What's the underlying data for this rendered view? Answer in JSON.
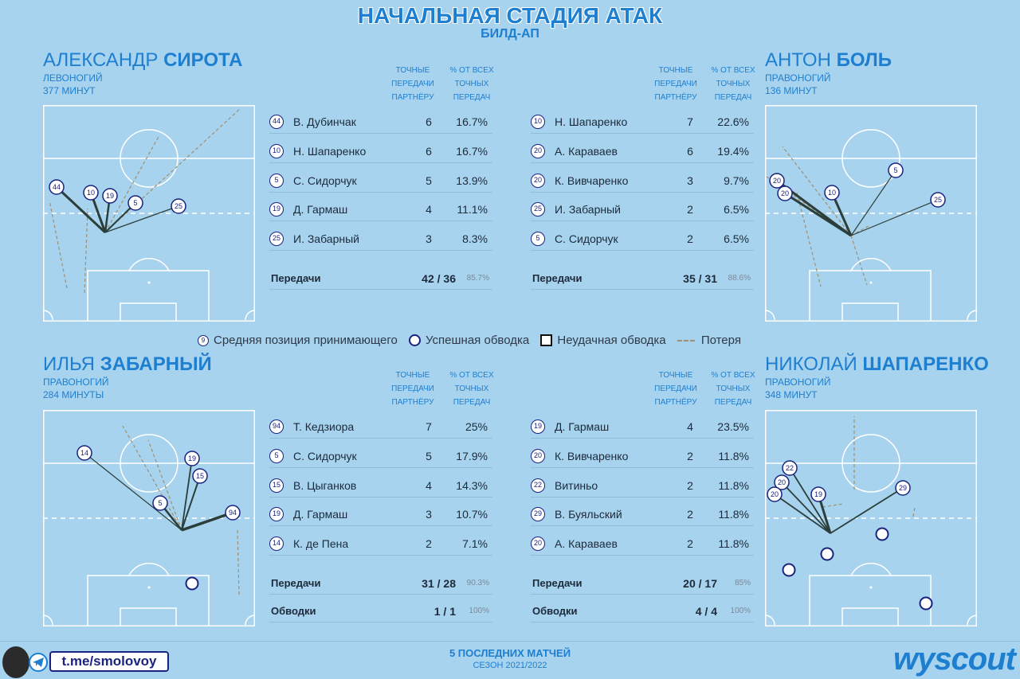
{
  "title": "НАЧАЛЬНАЯ СТАДИЯ АТАК",
  "subtitle": "БИЛД-АП",
  "columns": {
    "passes": [
      "ТОЧНЫЕ",
      "ПЕРЕДАЧИ",
      "ПАРТНЁРУ"
    ],
    "pct": [
      "% ОТ ВСЕХ",
      "ТОЧНЫХ",
      "ПЕРЕДАЧ"
    ]
  },
  "colors": {
    "accent": "#1e7fd0",
    "badge_border": "#1a237e",
    "pass_line": "#2c3e3a",
    "loss_line": "#a08f70"
  },
  "legend": {
    "badge_num": "9",
    "avg_pos": "Средняя позиция принимающего",
    "success_dribble": "Успешная обводка",
    "fail_dribble": "Неудачная обводка",
    "loss": "Потеря"
  },
  "players": [
    {
      "first": "АЛЕКСАНДР",
      "last": "СИРОТА",
      "foot": "ЛЕВОНОГИЙ",
      "minutes": "377 МИНУТ",
      "summary": {
        "label": "Передачи",
        "value": "42 / 36",
        "pct": "85.7%"
      }
    },
    {
      "first": "АНТОН",
      "last": "БОЛЬ",
      "foot": "ПРАВОНОГИЙ",
      "minutes": "136 МИНУТ",
      "summary": {
        "label": "Передачи",
        "value": "35 / 31",
        "pct": "88.6%"
      }
    },
    {
      "first": "ИЛЬЯ",
      "last": "ЗАБАРНЫЙ",
      "foot": "ПРАВОНОГИЙ",
      "minutes": "284 МИНУТЫ",
      "summary": {
        "label": "Передачи",
        "value": "31 / 28",
        "pct": "90.3%"
      },
      "dribbles": {
        "label": "Обводки",
        "value": "1 / 1",
        "pct": "100%"
      }
    },
    {
      "first": "НИКОЛАЙ",
      "last": "ШАПАРЕНКО",
      "foot": "ПРАВОНОГИЙ",
      "minutes": "348 МИНУТ",
      "summary": {
        "label": "Передачи",
        "value": "20 / 17",
        "pct": "85%"
      },
      "dribbles": {
        "label": "Обводки",
        "value": "4 / 4",
        "pct": "100%"
      }
    }
  ],
  "chart_data": [
    {
      "type": "table",
      "player": "Александр Сирота",
      "rows": [
        {
          "num": "44",
          "name": "В. Дубинчак",
          "passes": 6,
          "pct": "16.7%"
        },
        {
          "num": "10",
          "name": "Н. Шапаренко",
          "passes": 6,
          "pct": "16.7%"
        },
        {
          "num": "5",
          "name": "С. Сидорчук",
          "passes": 5,
          "pct": "13.9%"
        },
        {
          "num": "19",
          "name": "Д. Гармаш",
          "passes": 4,
          "pct": "11.1%"
        },
        {
          "num": "25",
          "name": "И. Забарный",
          "passes": 3,
          "pct": "8.3%"
        }
      ]
    },
    {
      "type": "table",
      "player": "Антон Боль",
      "rows": [
        {
          "num": "10",
          "name": "Н. Шапаренко",
          "passes": 7,
          "pct": "22.6%"
        },
        {
          "num": "20",
          "name": "А. Караваев",
          "passes": 6,
          "pct": "19.4%"
        },
        {
          "num": "20",
          "name": "К. Вивчаренко",
          "passes": 3,
          "pct": "9.7%"
        },
        {
          "num": "25",
          "name": "И. Забарный",
          "passes": 2,
          "pct": "6.5%"
        },
        {
          "num": "5",
          "name": "С. Сидорчук",
          "passes": 2,
          "pct": "6.5%"
        }
      ]
    },
    {
      "type": "table",
      "player": "Илья Забарный",
      "rows": [
        {
          "num": "94",
          "name": "Т. Кедзиора",
          "passes": 7,
          "pct": "25%"
        },
        {
          "num": "5",
          "name": "С. Сидорчук",
          "passes": 5,
          "pct": "17.9%"
        },
        {
          "num": "15",
          "name": "В. Цыганков",
          "passes": 4,
          "pct": "14.3%"
        },
        {
          "num": "19",
          "name": "Д. Гармаш",
          "passes": 3,
          "pct": "10.7%"
        },
        {
          "num": "14",
          "name": "К. де Пена",
          "passes": 2,
          "pct": "7.1%"
        }
      ]
    },
    {
      "type": "table",
      "player": "Николай Шапаренко",
      "rows": [
        {
          "num": "19",
          "name": "Д. Гармаш",
          "passes": 4,
          "pct": "23.5%"
        },
        {
          "num": "20",
          "name": "К. Вивчаренко",
          "passes": 2,
          "pct": "11.8%"
        },
        {
          "num": "22",
          "name": "Витиньо",
          "passes": 2,
          "pct": "11.8%"
        },
        {
          "num": "29",
          "name": "В. Буяльский",
          "passes": 2,
          "pct": "11.8%"
        },
        {
          "num": "20",
          "name": "А. Караваев",
          "passes": 2,
          "pct": "11.8%"
        }
      ]
    }
  ],
  "footer": {
    "line1": "5 ПОСЛЕДНИХ МАТЧЕЙ",
    "line2": "СЕЗОН 2021/2022",
    "telegram": "t.me/smolovoy",
    "brand": "wyscout"
  }
}
